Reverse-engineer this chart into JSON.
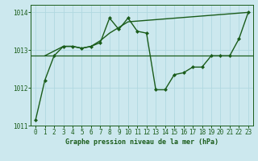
{
  "title": "Graphe pression niveau de la mer (hPa)",
  "bg_color": "#cce8ee",
  "grid_color": "#b0d8e0",
  "line_color": "#1a5c1a",
  "hline_color": "#1a5c1a",
  "xlim": [
    -0.5,
    23.5
  ],
  "ylim": [
    1011.0,
    1014.2
  ],
  "yticks": [
    1011,
    1012,
    1013,
    1014
  ],
  "xticks": [
    0,
    1,
    2,
    3,
    4,
    5,
    6,
    7,
    8,
    9,
    10,
    11,
    12,
    13,
    14,
    15,
    16,
    17,
    18,
    19,
    20,
    21,
    22,
    23
  ],
  "series1_x": [
    0,
    1,
    2,
    3,
    4,
    5,
    6,
    7,
    8,
    9,
    10,
    11,
    12,
    13,
    14,
    15,
    16,
    17,
    18,
    19,
    20,
    21,
    22,
    23
  ],
  "series1_y": [
    1011.15,
    1012.2,
    1012.85,
    1013.1,
    1013.1,
    1013.05,
    1013.1,
    1013.2,
    1013.85,
    1013.55,
    1013.85,
    1013.5,
    1013.45,
    1011.95,
    1011.95,
    1012.35,
    1012.4,
    1012.55,
    1012.55,
    1012.85,
    1012.85,
    1012.85,
    1013.3,
    1014.0
  ],
  "series2_x": [
    1,
    3,
    4,
    5,
    6,
    7,
    8,
    9,
    10,
    23
  ],
  "series2_y": [
    1012.85,
    1013.1,
    1013.1,
    1013.05,
    1013.1,
    1013.25,
    1013.45,
    1013.6,
    1013.75,
    1014.0
  ],
  "hline_y": 1012.85,
  "marker_style": "D",
  "marker_size": 2.0,
  "linewidth": 1.0,
  "xlabel_fontsize": 6.0,
  "tick_fontsize": 5.5
}
